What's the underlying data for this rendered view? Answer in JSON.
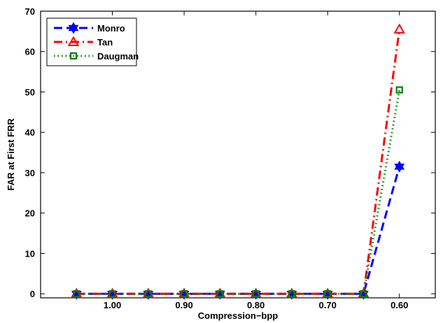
{
  "chart_data": {
    "type": "line",
    "title": "",
    "xlabel": "Compression−bpp",
    "ylabel": "FAR at First FRR",
    "x": [
      1.05,
      1.0,
      0.95,
      0.9,
      0.85,
      0.8,
      0.75,
      0.7,
      0.65,
      0.6
    ],
    "xlim": [
      1.1,
      0.55
    ],
    "x_reversed": true,
    "x_tick_values": [
      1.0,
      0.9,
      0.8,
      0.7,
      0.6
    ],
    "x_tick_labels": [
      "1.00",
      "0.90",
      "0.80",
      "0.70",
      "0.60"
    ],
    "ylim": [
      -1,
      70
    ],
    "y_tick_values": [
      0,
      10,
      20,
      30,
      40,
      50,
      60,
      70
    ],
    "y_tick_labels": [
      "0",
      "10",
      "20",
      "30",
      "40",
      "50",
      "60",
      "70"
    ],
    "grid": false,
    "legend_position": "top-left",
    "series": [
      {
        "name": "Monro",
        "color": "#0000ff",
        "line_style": "dashed",
        "marker": "hexagram",
        "values": [
          0,
          0,
          0,
          0,
          0,
          0,
          0,
          0,
          0,
          31.5
        ]
      },
      {
        "name": "Tan",
        "color": "#ff0000",
        "line_style": "dash-dot",
        "marker": "triangle",
        "values": [
          0,
          0,
          0,
          0,
          0,
          0,
          0,
          0,
          0,
          65.5
        ]
      },
      {
        "name": "Daugman",
        "color": "#008000",
        "line_style": "dotted",
        "marker": "square",
        "values": [
          0,
          0,
          0,
          0,
          0,
          0,
          0,
          0,
          0,
          50.5
        ]
      }
    ]
  }
}
